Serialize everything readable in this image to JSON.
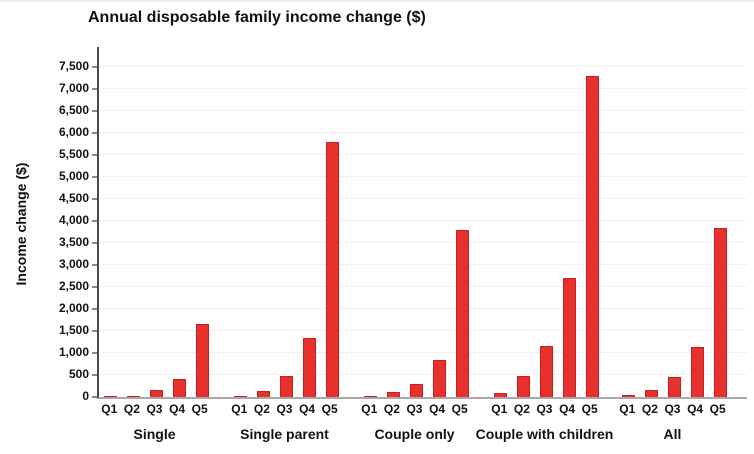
{
  "chart_data": {
    "type": "bar",
    "title": "Annual disposable family income change ($)",
    "ylabel": "Income change ($)",
    "xlabel": "",
    "categories": [
      "Q1",
      "Q2",
      "Q3",
      "Q4",
      "Q5"
    ],
    "series": [
      {
        "name": "Single",
        "values": [
          30,
          30,
          150,
          400,
          1650
        ]
      },
      {
        "name": "Single parent",
        "values": [
          30,
          140,
          470,
          1350,
          5800
        ]
      },
      {
        "name": "Couple only",
        "values": [
          30,
          110,
          290,
          830,
          3800
        ]
      },
      {
        "name": "Couple with children",
        "values": [
          100,
          480,
          1150,
          2700,
          7300
        ]
      },
      {
        "name": "All",
        "values": [
          40,
          170,
          460,
          1130,
          3850
        ]
      }
    ],
    "y_ticks": [
      0,
      500,
      1000,
      1500,
      2000,
      2500,
      3000,
      3500,
      4000,
      4500,
      5000,
      5500,
      6000,
      6500,
      7000,
      7500
    ],
    "ylim": [
      0,
      7900
    ],
    "grid": true,
    "legend_position": "none",
    "bar_color": "#e8312f",
    "bar_border_color": "#c9201f",
    "gridline_color": "#f1eeee"
  }
}
